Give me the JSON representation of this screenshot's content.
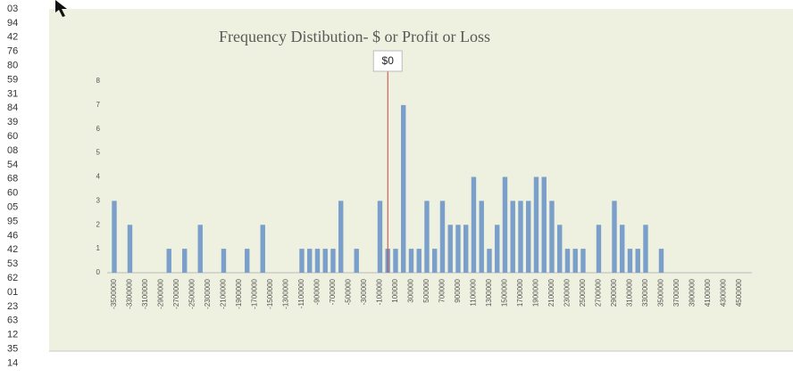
{
  "row_labels": [
    "03",
    "94",
    "42",
    "76",
    "80",
    "59",
    "31",
    "84",
    "39",
    "60",
    "08",
    "54",
    "68",
    "60",
    "05",
    "95",
    "46",
    "42",
    "53",
    "62",
    "01",
    "23",
    "63",
    "12",
    "35",
    "14"
  ],
  "chart_data": {
    "type": "bar",
    "title": "Frequency Distibution- $ or Profit or Loss",
    "annotation": {
      "text": "$0",
      "x": 0
    },
    "categories": [
      -3500000,
      null,
      -3300000,
      null,
      -3100000,
      null,
      -2900000,
      null,
      -2700000,
      null,
      -2500000,
      null,
      -2300000,
      null,
      -2100000,
      null,
      -1900000,
      null,
      -1700000,
      null,
      -1500000,
      null,
      -1300000,
      null,
      -1100000,
      null,
      -900000,
      null,
      -700000,
      null,
      -500000,
      null,
      -300000,
      null,
      -100000,
      null,
      100000,
      null,
      300000,
      null,
      500000,
      null,
      700000,
      null,
      900000,
      null,
      1100000,
      null,
      1300000,
      null,
      1500000,
      null,
      1700000,
      null,
      1900000,
      null,
      2100000,
      null,
      2300000,
      null,
      2500000,
      null,
      2700000,
      null,
      2900000,
      null,
      3100000,
      null,
      3300000,
      null,
      3500000,
      null,
      3700000,
      null,
      3900000,
      null,
      4100000,
      null,
      4300000,
      null,
      4500000
    ],
    "values": [
      3,
      0,
      2,
      0,
      0,
      0,
      0,
      1,
      0,
      1,
      0,
      2,
      0,
      0,
      1,
      0,
      0,
      1,
      0,
      2,
      0,
      0,
      0,
      0,
      1,
      1,
      1,
      1,
      1,
      3,
      0,
      1,
      0,
      0,
      3,
      1,
      1,
      7,
      1,
      1,
      3,
      1,
      3,
      2,
      2,
      2,
      4,
      3,
      1,
      2,
      4,
      3,
      3,
      3,
      4,
      4,
      3,
      2,
      1,
      1,
      1,
      0,
      2,
      0,
      3,
      2,
      1,
      1,
      2,
      0,
      1,
      0,
      0,
      0,
      0,
      0,
      0,
      0,
      0,
      0,
      0
    ],
    "color": "#7a9fca",
    "line_color": "#c9423c",
    "ylim": [
      0,
      8
    ],
    "yticks": [
      0,
      1,
      2,
      3,
      4,
      5,
      6,
      7,
      8
    ],
    "grid": false
  }
}
